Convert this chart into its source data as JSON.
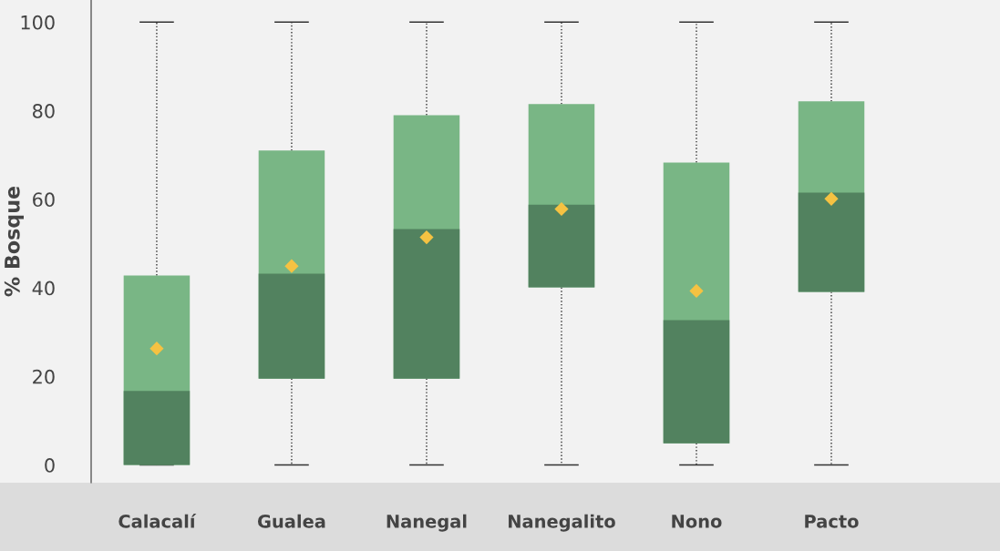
{
  "chart_data": {
    "type": "box",
    "ylabel": "% Bosque",
    "categories": [
      "Calacalí",
      "Gualea",
      "Nanegal",
      "Nanegalito",
      "Nono",
      "Pacto"
    ],
    "colors": [
      "#79b685",
      "#79b685",
      "#79b685",
      "#79b685",
      "#79b685",
      "#79b685"
    ],
    "boxes": [
      {
        "low": 0,
        "q1": 0,
        "median": 16.7,
        "q3": 42.8,
        "high": 100,
        "mean": 26.3
      },
      {
        "low": 0,
        "q1": 19.5,
        "median": 43.2,
        "q3": 71,
        "high": 100,
        "mean": 44.9
      },
      {
        "low": 0,
        "q1": 19.5,
        "median": 53.3,
        "q3": 79,
        "high": 100,
        "mean": 51.4
      },
      {
        "low": 0,
        "q1": 40.1,
        "median": 58.8,
        "q3": 81.5,
        "high": 100,
        "mean": 57.8
      },
      {
        "low": 0,
        "q1": 4.9,
        "median": 32.7,
        "q3": 68.3,
        "high": 100,
        "mean": 39.3
      },
      {
        "low": 0,
        "q1": 39.1,
        "median": 61.5,
        "q3": 82.1,
        "high": 100,
        "mean": 60.1
      }
    ],
    "ylim": [
      -4,
      105
    ],
    "yticks": [
      0,
      20,
      40,
      60,
      80,
      100
    ],
    "grid": false,
    "legend": false
  }
}
